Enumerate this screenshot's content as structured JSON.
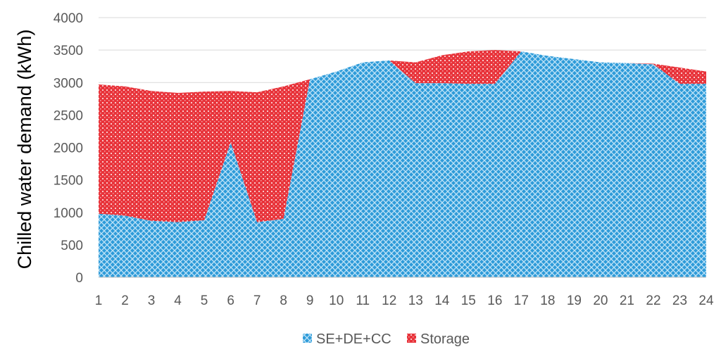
{
  "chart_data": {
    "type": "area",
    "stacked": true,
    "title": "",
    "xlabel": "",
    "ylabel": "Chilled water demand (kWh)",
    "x": [
      1,
      2,
      3,
      4,
      5,
      6,
      7,
      8,
      9,
      10,
      11,
      12,
      13,
      14,
      15,
      16,
      17,
      18,
      19,
      20,
      21,
      22,
      23,
      24
    ],
    "ylim": [
      0,
      4000
    ],
    "yticks": [
      0,
      500,
      1000,
      1500,
      2000,
      2500,
      3000,
      3500,
      4000
    ],
    "grid": true,
    "legend_position": "bottom",
    "series": [
      {
        "name": "SE+DE+CC",
        "color": "#2E9BD9",
        "values": [
          980,
          950,
          870,
          850,
          880,
          2080,
          850,
          900,
          3050,
          3170,
          3310,
          3340,
          2990,
          2990,
          2980,
          2980,
          3480,
          3410,
          3360,
          3310,
          3300,
          3280,
          2980,
          2980
        ]
      },
      {
        "name": "Storage",
        "color": "#E8343B",
        "values": [
          1990,
          1990,
          2000,
          1990,
          1980,
          790,
          2000,
          2040,
          0,
          0,
          0,
          0,
          320,
          430,
          500,
          520,
          0,
          0,
          0,
          0,
          0,
          10,
          250,
          190
        ]
      }
    ]
  }
}
